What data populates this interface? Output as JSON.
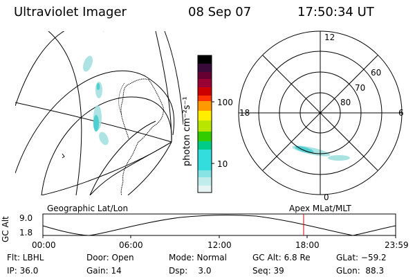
{
  "header": {
    "title": "Ultraviolet Imager",
    "date": "08 Sep 07",
    "time": "17:50:34 UT"
  },
  "colorbar": {
    "unit_label": "photon cm⁻²s⁻¹",
    "tick_labels": [
      "100",
      "10"
    ],
    "colors": [
      "#000000",
      "#3a0a3a",
      "#660033",
      "#990033",
      "#cc0000",
      "#ff3300",
      "#ff9900",
      "#ffee00",
      "#b8e600",
      "#33cc00",
      "#00cc88",
      "#33dddd",
      "#88e4e4",
      "#c0ecec",
      "#e6f4f4"
    ]
  },
  "polar": {
    "mlt_labels": [
      "12",
      "18",
      "6",
      "0"
    ],
    "lat_labels": [
      "60",
      "70",
      "80"
    ]
  },
  "timeline": {
    "left_title": "Geographic Lat/Lon",
    "right_title": "Apex MLat/MLT",
    "axis_label": "GC Alt",
    "y_labels": [
      "9.0",
      "1.8"
    ],
    "x_ticks": [
      "00:00",
      "06:00",
      "12:00",
      "18:00",
      "23:59"
    ],
    "current_time_marker_color": "#cc0000"
  },
  "info": {
    "filter": "Flt: LBHL",
    "ip": "IP: 36.0",
    "door": "Door: Open",
    "gain": "Gain: 14",
    "mode": "Mode: Normal",
    "dsp": "Dsp:    3.0",
    "gc_alt": "GC Alt: 6.8 Re",
    "seq": "Seq: 39",
    "glat": "GLat: −59.2",
    "glon": "GLon:  88.3"
  }
}
